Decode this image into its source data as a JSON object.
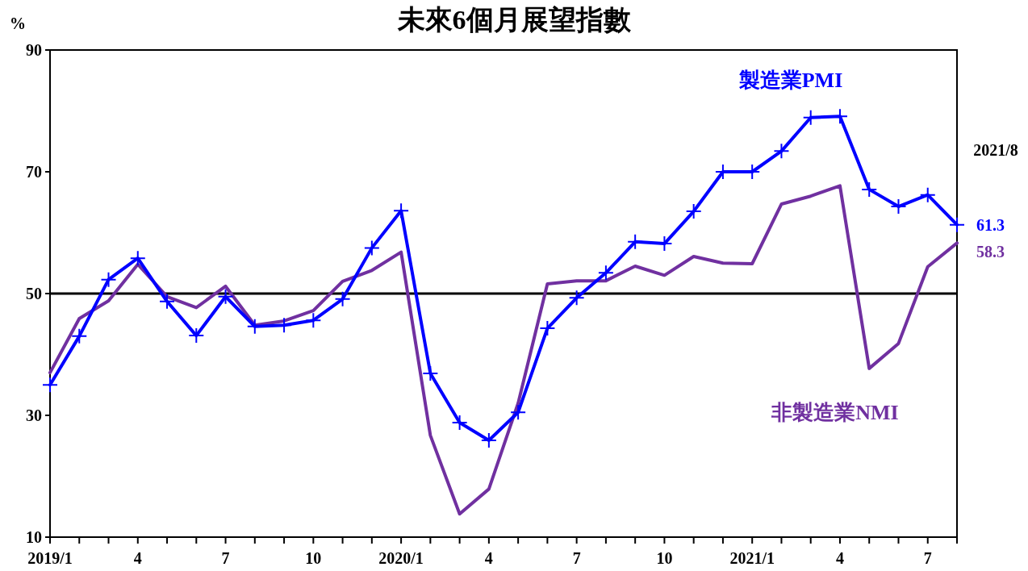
{
  "chart_data": {
    "type": "line",
    "title": "未來6個月展望指數",
    "ylabel": "%",
    "categories": [
      "2019/1",
      null,
      null,
      "4",
      null,
      null,
      "7",
      null,
      null,
      "10",
      null,
      null,
      "2020/1",
      null,
      null,
      "4",
      null,
      null,
      "7",
      null,
      null,
      "10",
      null,
      null,
      "2021/1",
      null,
      null,
      "4",
      null,
      null,
      "7",
      null
    ],
    "series": [
      {
        "name": "製造業PMI",
        "color": "#0000ff",
        "marker": "cross",
        "values": [
          35.0,
          43.0,
          52.3,
          55.8,
          48.7,
          43.1,
          49.5,
          44.6,
          44.8,
          45.6,
          49.1,
          57.5,
          63.6,
          36.9,
          28.8,
          25.9,
          30.5,
          44.3,
          49.3,
          53.4,
          58.5,
          58.2,
          63.5,
          70.0,
          70.0,
          73.4,
          78.9,
          79.1,
          67.1,
          64.3,
          66.2,
          61.3
        ],
        "value_labels": [
          null,
          null,
          null,
          null,
          null,
          null,
          null,
          null,
          null,
          null,
          null,
          null,
          null,
          null,
          null,
          null,
          null,
          null,
          null,
          null,
          null,
          null,
          null,
          null,
          null,
          null,
          null,
          null,
          null,
          null,
          null,
          "61.3"
        ]
      },
      {
        "name": "非製造業NMI",
        "color": "#7030a0",
        "marker": "none",
        "values": [
          37.0,
          45.9,
          48.8,
          54.8,
          49.5,
          47.7,
          51.2,
          44.8,
          45.5,
          47.2,
          52.0,
          53.8,
          56.8,
          26.7,
          13.8,
          17.9,
          32.0,
          51.6,
          52.1,
          52.1,
          54.5,
          53.0,
          56.1,
          55.0,
          54.9,
          64.7,
          66.0,
          67.7,
          37.7,
          41.8,
          54.4,
          58.3
        ],
        "value_labels": [
          null,
          null,
          null,
          null,
          null,
          null,
          null,
          null,
          null,
          null,
          null,
          null,
          null,
          null,
          null,
          null,
          null,
          null,
          null,
          null,
          null,
          null,
          null,
          null,
          null,
          null,
          null,
          null,
          null,
          null,
          null,
          "58.3"
        ]
      }
    ],
    "ylim": [
      10,
      90
    ],
    "yticks": [
      10,
      30,
      50,
      70,
      90
    ],
    "ref_lines": [
      {
        "axis": "y",
        "value": 50,
        "color": "#000000"
      }
    ],
    "annotations": [
      "2021/8"
    ],
    "grid": false,
    "legend": false
  }
}
